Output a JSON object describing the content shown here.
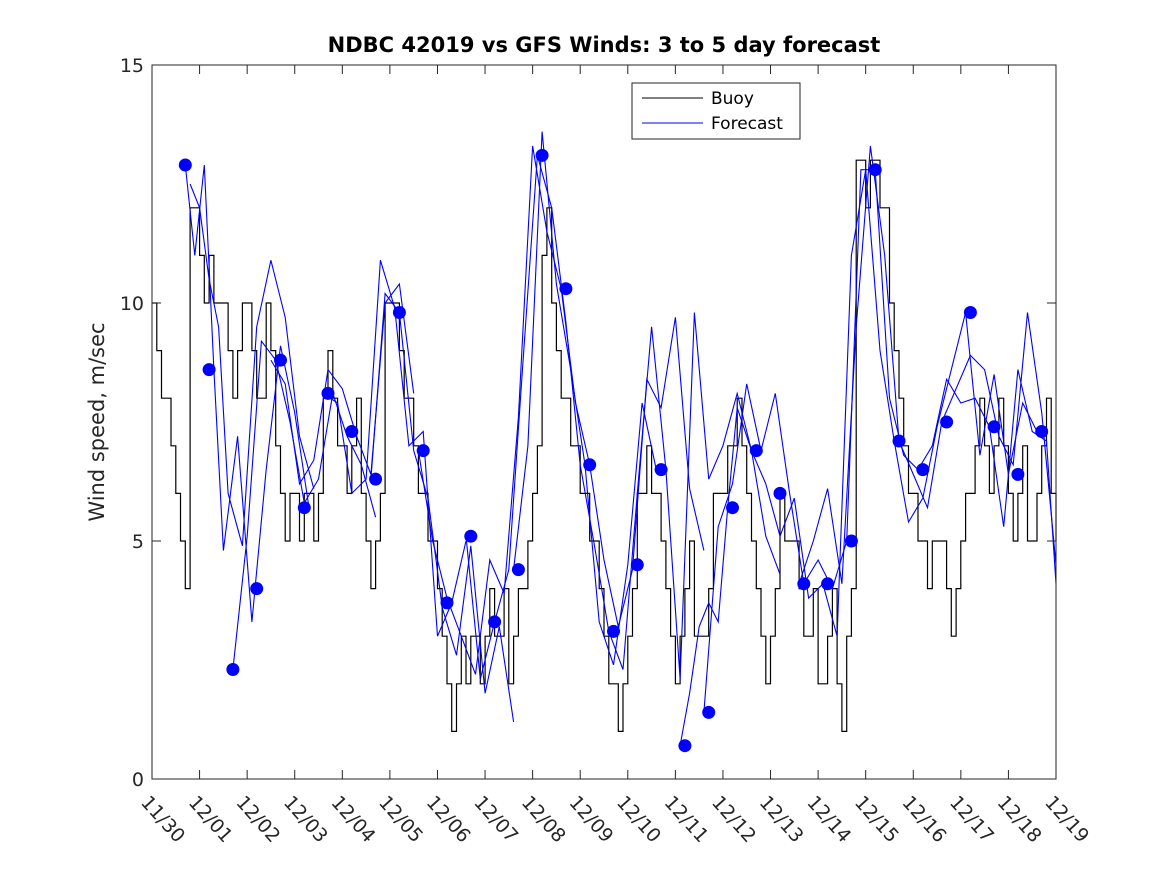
{
  "chart_data": {
    "type": "line",
    "title": "NDBC 42019 vs GFS Winds: 3 to 5 day forecast",
    "xlabel": "",
    "ylabel": "Wind speed, m/sec",
    "xlim": [
      0,
      19
    ],
    "ylim": [
      0,
      15
    ],
    "yticks": [
      0,
      5,
      10,
      15
    ],
    "xtick_labels": [
      "11/30",
      "12/01",
      "12/02",
      "12/03",
      "12/04",
      "12/05",
      "12/06",
      "12/07",
      "12/08",
      "12/09",
      "12/10",
      "12/11",
      "12/12",
      "12/13",
      "12/14",
      "12/15",
      "12/16",
      "12/17",
      "12/18",
      "12/19"
    ],
    "legend": {
      "position": "top-center",
      "entries": [
        "Buoy",
        "Forecast"
      ]
    },
    "colors": {
      "buoy": "#000000",
      "forecast": "#0000ff",
      "axis": "#262626"
    },
    "series": [
      {
        "name": "Buoy",
        "style": "step",
        "x": [
          0.0,
          0.1,
          0.2,
          0.3,
          0.4,
          0.5,
          0.6,
          0.7,
          0.8,
          0.9,
          1.0,
          1.1,
          1.2,
          1.3,
          1.4,
          1.5,
          1.6,
          1.7,
          1.8,
          1.9,
          2.0,
          2.1,
          2.2,
          2.3,
          2.4,
          2.5,
          2.6,
          2.7,
          2.8,
          2.9,
          3.0,
          3.1,
          3.2,
          3.3,
          3.4,
          3.5,
          3.6,
          3.7,
          3.8,
          3.9,
          4.0,
          4.1,
          4.2,
          4.3,
          4.4,
          4.5,
          4.6,
          4.7,
          4.8,
          4.9,
          5.0,
          5.1,
          5.2,
          5.3,
          5.4,
          5.5,
          5.6,
          5.7,
          5.8,
          5.9,
          6.0,
          6.1,
          6.2,
          6.3,
          6.4,
          6.5,
          6.6,
          6.7,
          6.8,
          6.9,
          7.0,
          7.1,
          7.2,
          7.3,
          7.4,
          7.5,
          7.6,
          7.7,
          7.8,
          7.9,
          8.0,
          8.1,
          8.2,
          8.3,
          8.4,
          8.5,
          8.6,
          8.7,
          8.8,
          8.9,
          9.0,
          9.1,
          9.2,
          9.3,
          9.4,
          9.5,
          9.6,
          9.7,
          9.8,
          9.9,
          10.0,
          10.1,
          10.2,
          10.3,
          10.4,
          10.5,
          10.6,
          10.7,
          10.8,
          10.9,
          11.0,
          11.1,
          11.2,
          11.3,
          11.4,
          11.5,
          11.6,
          11.7,
          11.8,
          11.9,
          12.0,
          12.1,
          12.2,
          12.3,
          12.4,
          12.5,
          12.6,
          12.7,
          12.8,
          12.9,
          13.0,
          13.1,
          13.2,
          13.3,
          13.4,
          13.5,
          13.6,
          13.7,
          13.8,
          13.9,
          14.0,
          14.1,
          14.2,
          14.3,
          14.4,
          14.5,
          14.6,
          14.7,
          14.8,
          14.9,
          15.0,
          15.1,
          15.2,
          15.3,
          15.4,
          15.5,
          15.6,
          15.7,
          15.8,
          15.9,
          16.0,
          16.1,
          16.2,
          16.3,
          16.4,
          16.5,
          16.6,
          16.7,
          16.8,
          16.9,
          17.0,
          17.1,
          17.2,
          17.3,
          17.4,
          17.5,
          17.6,
          17.7,
          17.8,
          17.9,
          18.0,
          18.1,
          18.2,
          18.3,
          18.4,
          18.5,
          18.6,
          18.7,
          18.8,
          18.9,
          19.0
        ],
        "values": [
          10,
          9,
          8,
          8,
          7,
          6,
          5,
          4,
          12,
          12,
          11,
          10,
          11,
          10,
          10,
          10,
          9,
          8,
          9,
          10,
          10,
          9,
          8,
          8,
          10,
          9,
          7,
          6,
          5,
          6,
          6,
          5,
          6,
          6,
          5,
          6,
          8,
          9,
          8,
          7,
          7,
          6,
          7,
          8,
          6,
          5,
          4,
          5,
          6,
          10,
          10,
          10,
          9,
          8,
          8,
          7,
          6,
          6,
          5,
          5,
          4,
          3,
          2,
          1,
          2,
          3,
          2,
          3,
          3,
          2,
          3,
          4,
          3,
          3,
          4,
          2,
          3,
          4,
          4,
          5,
          6,
          7,
          11,
          12,
          10,
          9,
          8,
          8,
          7,
          7,
          6,
          6,
          5,
          5,
          4,
          3,
          2,
          2,
          1,
          2,
          3,
          4,
          6,
          6,
          7,
          6,
          6,
          5,
          4,
          3,
          2,
          3,
          4,
          5,
          3,
          3,
          3,
          4,
          6,
          6,
          6,
          7,
          7,
          8,
          7,
          6,
          5,
          4,
          3,
          2,
          3,
          4,
          6,
          5,
          5,
          5,
          4,
          3,
          3,
          4,
          2,
          2,
          3,
          4,
          2,
          1,
          3,
          4,
          13,
          13,
          12,
          13,
          13,
          12,
          12,
          10,
          9,
          8,
          7,
          6,
          6,
          5,
          5,
          4,
          5,
          5,
          5,
          4,
          3,
          4,
          5,
          6,
          6,
          7,
          8,
          7,
          6,
          7,
          8,
          7,
          6,
          5,
          6,
          7,
          5,
          5,
          6,
          7,
          8,
          6,
          5
        ]
      },
      {
        "name": "Forecast",
        "style": "line",
        "runs": [
          {
            "x": [
              0.7,
              0.9,
              1.1,
              1.3,
              1.5,
              1.8,
              2.1,
              2.4,
              2.7,
              3.0,
              3.3
            ],
            "values": [
              12.9,
              11.0,
              12.9,
              8.6,
              4.8,
              7.2,
              3.3,
              6.5,
              9.1,
              7.7,
              5.7
            ]
          },
          {
            "x": [
              0.8,
              1.0,
              1.2,
              1.4,
              1.6,
              1.9,
              2.2,
              2.5,
              2.8,
              3.1,
              3.4
            ],
            "values": [
              12.5,
              12.0,
              10.5,
              9.5,
              6.0,
              4.9,
              9.5,
              10.9,
              9.7,
              7.2,
              6.1
            ]
          },
          {
            "x": [
              1.7,
              2.0,
              2.3,
              2.6,
              2.9,
              3.2,
              3.5,
              3.8,
              4.1,
              4.4,
              4.7
            ],
            "values": [
              2.3,
              5.1,
              9.2,
              8.8,
              7.5,
              5.8,
              6.3,
              8.1,
              7.2,
              6.6,
              5.5
            ]
          },
          {
            "x": [
              2.5,
              2.8,
              3.1,
              3.4,
              3.7,
              4.0,
              4.3,
              4.6,
              4.9,
              5.2,
              5.5
            ],
            "values": [
              8.8,
              8.3,
              6.2,
              6.7,
              8.6,
              8.2,
              7.2,
              6.4,
              10.0,
              10.4,
              8.1
            ]
          },
          {
            "x": [
              3.6,
              3.9,
              4.2,
              4.5,
              4.8,
              5.1,
              5.4,
              5.7,
              6.0,
              6.3,
              6.6
            ],
            "values": [
              8.1,
              7.9,
              6.0,
              6.3,
              10.9,
              9.9,
              7.0,
              7.3,
              3.0,
              3.7,
              5.0
            ]
          },
          {
            "x": [
              4.6,
              4.9,
              5.2,
              5.5,
              5.8,
              6.1,
              6.4,
              6.7,
              7.0,
              7.3,
              7.6
            ],
            "values": [
              6.3,
              10.2,
              9.8,
              6.9,
              5.9,
              3.6,
              2.6,
              4.9,
              1.8,
              3.2,
              1.2
            ]
          },
          {
            "x": [
              5.6,
              5.9,
              6.2,
              6.5,
              6.8,
              7.1,
              7.4,
              7.7,
              8.0,
              8.3,
              8.6
            ],
            "values": [
              6.9,
              5.0,
              3.8,
              3.0,
              2.2,
              4.6,
              3.9,
              7.6,
              13.3,
              11.5,
              10.3
            ]
          },
          {
            "x": [
              6.6,
              6.9,
              7.2,
              7.5,
              7.8,
              8.1,
              8.4,
              8.7,
              9.0,
              9.3,
              9.6
            ],
            "values": [
              5.1,
              2.1,
              3.3,
              4.4,
              8.8,
              13.1,
              12.0,
              9.6,
              6.6,
              4.9,
              3.1
            ]
          },
          {
            "x": [
              7.6,
              7.9,
              8.2,
              8.5,
              8.8,
              9.1,
              9.4,
              9.7,
              10.0,
              10.3,
              10.6
            ],
            "values": [
              4.4,
              7.0,
              13.6,
              10.4,
              8.6,
              6.6,
              3.3,
              2.4,
              4.5,
              7.9,
              6.5
            ]
          },
          {
            "x": [
              8.6,
              8.9,
              9.2,
              9.5,
              9.8,
              10.1,
              10.4,
              10.7,
              11.0,
              11.3,
              11.6
            ],
            "values": [
              10.3,
              7.9,
              6.6,
              4.6,
              3.2,
              4.4,
              8.4,
              7.8,
              9.7,
              6.1,
              4.8
            ]
          },
          {
            "x": [
              9.6,
              9.9,
              10.2,
              10.5,
              10.8,
              11.1,
              11.4,
              11.7,
              12.0,
              12.3,
              12.6
            ],
            "values": [
              3.1,
              2.3,
              6.0,
              9.5,
              6.5,
              2.1,
              9.8,
              6.3,
              7.0,
              8.1,
              6.9
            ]
          },
          {
            "x": [
              11.1,
              11.3,
              11.5,
              11.7,
              11.9,
              12.1,
              12.3,
              12.6,
              12.9,
              13.2
            ],
            "values": [
              0.7,
              1.8,
              3.2,
              3.7,
              3.3,
              5.7,
              7.8,
              6.9,
              5.1,
              4.3
            ]
          },
          {
            "x": [
              11.6,
              11.9,
              12.2,
              12.5,
              12.8,
              13.1,
              13.4,
              13.7,
              14.0,
              14.3,
              14.6
            ],
            "values": [
              1.4,
              5.3,
              6.2,
              8.3,
              6.9,
              8.1,
              6.0,
              4.1,
              4.6,
              4.0,
              5.0
            ]
          },
          {
            "x": [
              12.6,
              12.9,
              13.2,
              13.5,
              13.8,
              14.1,
              14.4,
              14.7,
              15.0,
              15.3,
              15.6
            ],
            "values": [
              6.9,
              6.2,
              5.1,
              5.9,
              3.8,
              4.1,
              3.0,
              11.0,
              12.8,
              9.0,
              7.1
            ]
          },
          {
            "x": [
              13.6,
              13.9,
              14.2,
              14.5,
              14.8,
              15.1,
              15.4,
              15.7,
              16.0,
              16.3,
              16.6
            ],
            "values": [
              4.1,
              5.0,
              6.1,
              4.1,
              9.5,
              13.3,
              11.0,
              7.1,
              6.4,
              5.7,
              7.5
            ]
          },
          {
            "x": [
              14.6,
              14.9,
              15.2,
              15.5,
              15.8,
              16.1,
              16.4,
              16.7,
              17.0,
              17.3,
              17.6
            ],
            "values": [
              5.0,
              12.8,
              12.8,
              8.0,
              6.8,
              6.5,
              7.0,
              8.4,
              7.9,
              8.0,
              7.4
            ]
          },
          {
            "x": [
              15.6,
              15.9,
              16.2,
              16.5,
              16.8,
              17.1,
              17.4,
              17.7,
              18.0,
              18.3,
              18.6
            ],
            "values": [
              7.1,
              5.4,
              5.9,
              7.4,
              8.6,
              9.8,
              6.8,
              8.5,
              6.4,
              7.9,
              7.3
            ]
          },
          {
            "x": [
              16.6,
              16.9,
              17.2,
              17.5,
              17.8,
              18.1,
              18.4,
              18.7,
              19.0
            ],
            "values": [
              7.5,
              8.2,
              8.9,
              8.6,
              7.2,
              6.6,
              9.8,
              7.7,
              4.5
            ]
          },
          {
            "x": [
              17.6,
              17.9,
              18.2,
              18.5,
              18.8,
              19.0
            ],
            "values": [
              7.4,
              5.3,
              8.6,
              7.3,
              7.1,
              4.1
            ]
          }
        ],
        "markers_x": [
          0.7,
          1.2,
          1.7,
          2.2,
          2.7,
          3.2,
          3.7,
          4.2,
          4.7,
          5.2,
          5.7,
          6.2,
          6.7,
          7.2,
          7.7,
          8.2,
          8.7,
          9.2,
          9.7,
          10.2,
          10.7,
          11.2,
          11.7,
          12.2,
          12.7,
          13.2,
          13.7,
          14.2,
          14.7,
          15.2,
          15.7,
          16.2,
          16.7,
          17.2,
          17.7,
          18.2,
          18.7
        ],
        "markers": [
          12.9,
          8.6,
          2.3,
          4.0,
          8.8,
          5.7,
          8.1,
          7.3,
          6.3,
          9.8,
          6.9,
          3.7,
          5.1,
          3.3,
          4.4,
          13.1,
          10.3,
          6.6,
          3.1,
          4.5,
          6.5,
          0.7,
          1.4,
          5.7,
          6.9,
          6.0,
          4.1,
          4.1,
          5.0,
          12.8,
          7.1,
          6.5,
          7.5,
          9.8,
          7.4,
          6.4,
          7.3
        ]
      }
    ]
  }
}
